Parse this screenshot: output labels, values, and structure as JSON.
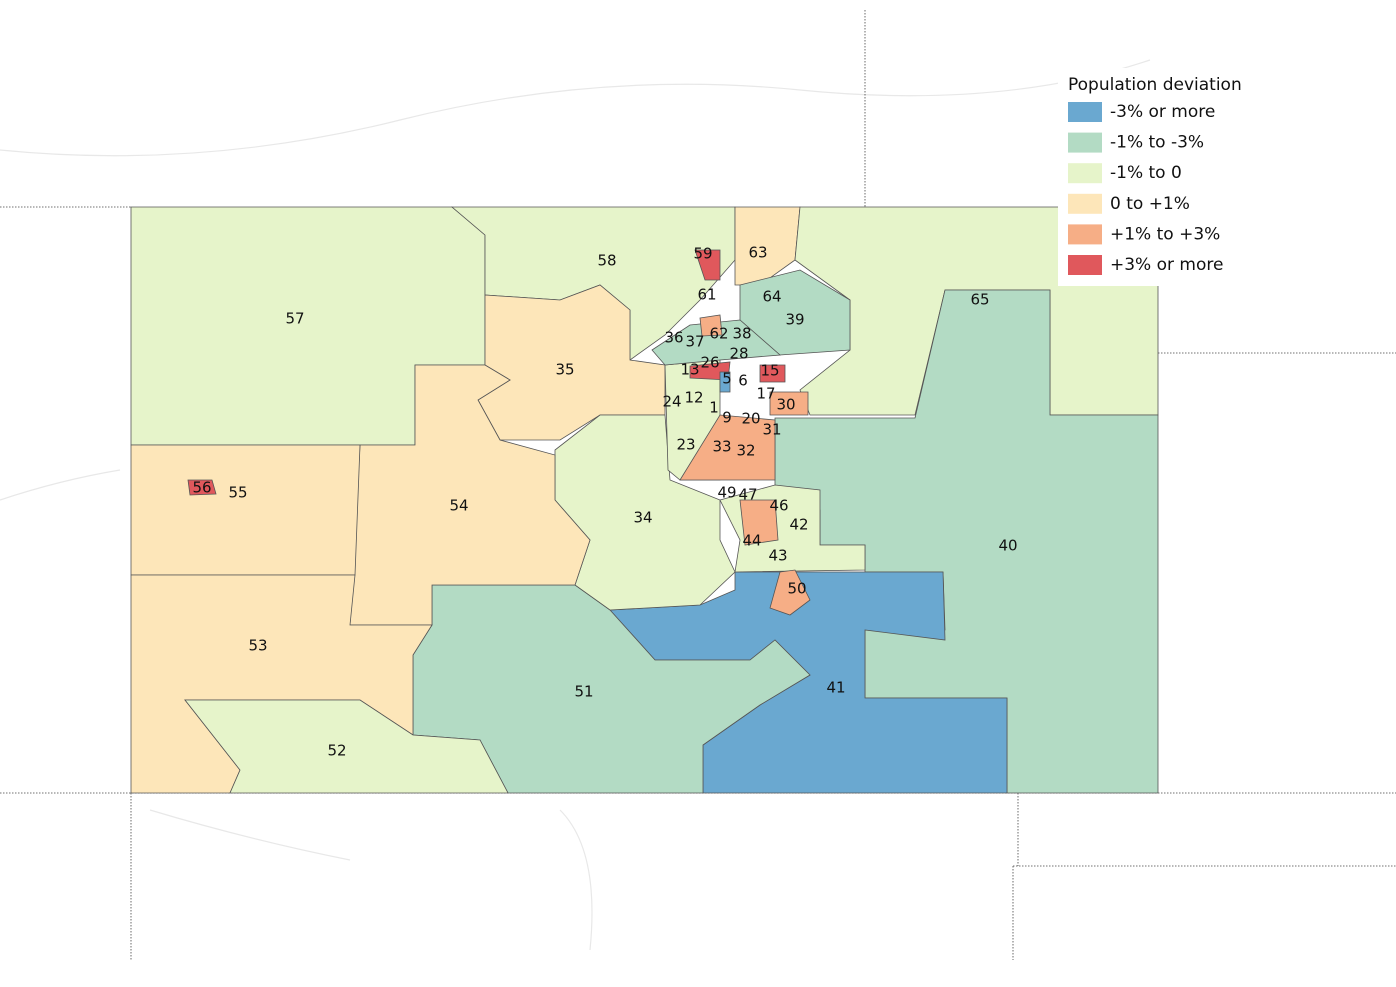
{
  "legend": {
    "title": "Population deviation",
    "items": [
      {
        "label": "-3% or more",
        "color": "#6aa8d0"
      },
      {
        "label": "-1% to -3%",
        "color": "#b3dbc4"
      },
      {
        "label": "-1% to 0",
        "color": "#e6f4ca"
      },
      {
        "label": "0 to +1%",
        "color": "#fde6b9"
      },
      {
        "label": "+1% to +3%",
        "color": "#f6ae86"
      },
      {
        "label": "+3% or more",
        "color": "#e0585c"
      }
    ]
  },
  "districts": [
    "57",
    "58",
    "59",
    "63",
    "61",
    "64",
    "39",
    "65",
    "36",
    "37",
    "62",
    "38",
    "28",
    "35",
    "26",
    "13",
    "5",
    "6",
    "15",
    "17",
    "30",
    "24",
    "12",
    "1",
    "9",
    "20",
    "31",
    "23",
    "33",
    "32",
    "49",
    "47",
    "46",
    "42",
    "44",
    "43",
    "34",
    "54",
    "55",
    "56",
    "40",
    "50",
    "41",
    "51",
    "53",
    "52"
  ]
}
